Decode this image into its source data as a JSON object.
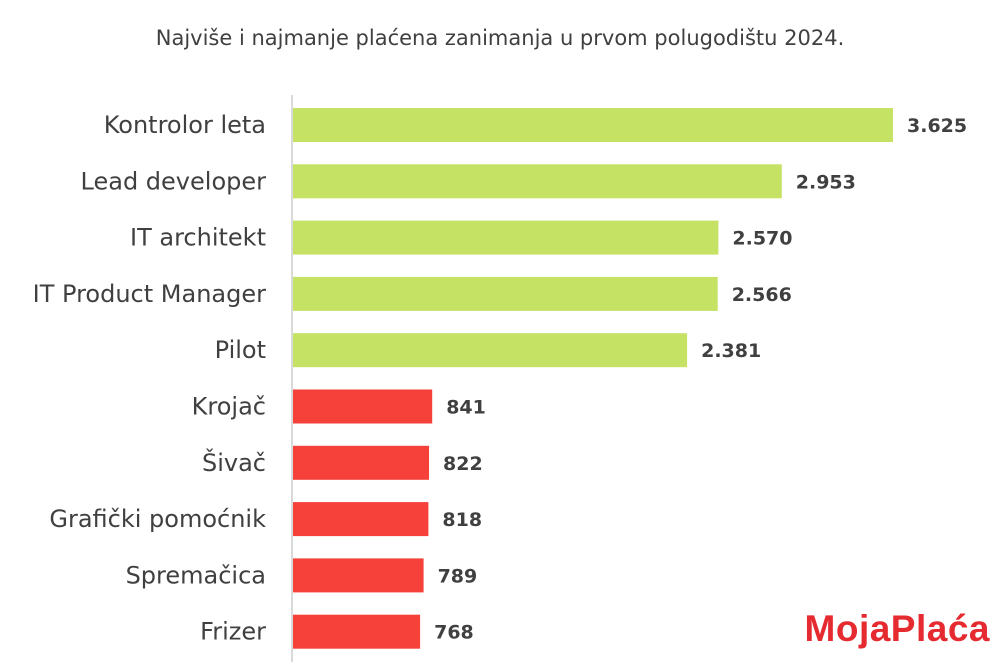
{
  "chart_data": {
    "type": "bar",
    "orientation": "horizontal",
    "title": "Najviše i najmanje plaćena zanimanja u prvom polugodištu 2024.",
    "categories": [
      "Kontrolor leta",
      "Lead developer",
      "IT architekt",
      "IT Product Manager",
      "Pilot",
      "Krojač",
      "Šivač",
      "Grafički pomoćnik",
      "Spremačica",
      "Frizer"
    ],
    "values": [
      3625,
      2953,
      2570,
      2566,
      2381,
      841,
      822,
      818,
      789,
      768
    ],
    "value_labels": [
      "3.625",
      "2.953",
      "2.570",
      "2.566",
      "2.381",
      "841",
      "822",
      "818",
      "789",
      "768"
    ],
    "bar_colors": [
      "#c5e265",
      "#c5e265",
      "#c5e265",
      "#c5e265",
      "#c5e265",
      "#f6403a",
      "#f6403a",
      "#f6403a",
      "#f6403a",
      "#f6403a"
    ],
    "xlim": [
      0,
      3625
    ],
    "grid": false,
    "axis_color": "#d9d9d9"
  },
  "logo_text": "MojaPlaća"
}
